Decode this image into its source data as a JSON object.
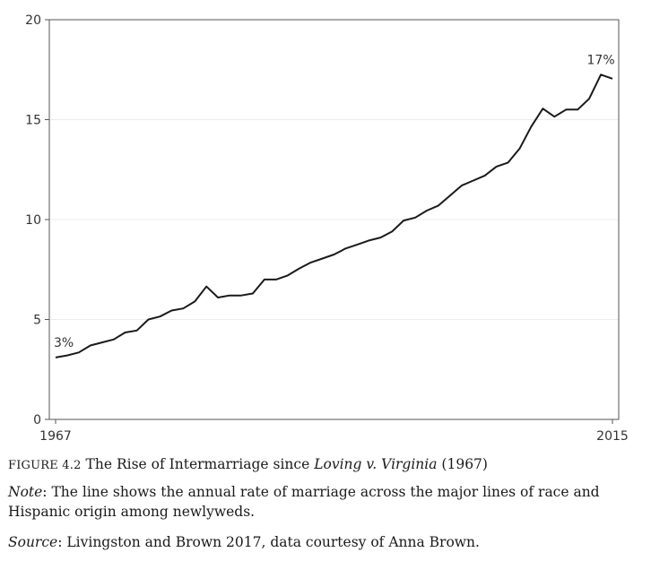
{
  "chart_data": {
    "type": "line",
    "title": "",
    "xlabel": "",
    "ylabel": "",
    "xlim": [
      1967,
      2015
    ],
    "ylim": [
      0,
      20
    ],
    "grid": true,
    "x_ticks": [
      "1967",
      "2015"
    ],
    "y_ticks": [
      "0",
      "5",
      "10",
      "15",
      "20"
    ],
    "series": [
      {
        "x": [
          1967,
          1968,
          1969,
          1970,
          1971,
          1972,
          1973,
          1974,
          1975,
          1976,
          1977,
          1978,
          1979,
          1980,
          1981,
          1982,
          1983,
          1984,
          1985,
          1986,
          1987,
          1988,
          1989,
          1990,
          1991,
          1992,
          1993,
          1994,
          1995,
          1996,
          1997,
          1998,
          1999,
          2000,
          2001,
          2002,
          2003,
          2004,
          2005,
          2006,
          2007,
          2008,
          2009,
          2010,
          2011,
          2012,
          2013,
          2014,
          2015
        ],
        "values": [
          3.1,
          3.2,
          3.35,
          3.7,
          3.85,
          4.0,
          4.35,
          4.45,
          5.0,
          5.15,
          5.45,
          5.55,
          5.9,
          6.65,
          6.1,
          6.2,
          6.2,
          6.3,
          7.0,
          7.0,
          7.2,
          7.55,
          7.85,
          8.05,
          8.25,
          8.55,
          8.75,
          8.95,
          9.1,
          9.4,
          9.95,
          10.1,
          10.45,
          10.7,
          11.2,
          11.7,
          11.95,
          12.2,
          12.65,
          12.85,
          13.55,
          14.65,
          15.55,
          15.15,
          15.5,
          15.5,
          16.05,
          17.25,
          17.05
        ]
      }
    ],
    "annotations": [
      {
        "label": "3%",
        "x": 1967,
        "y": 3.1
      },
      {
        "label": "17%",
        "x": 2014,
        "y": 17.25
      }
    ],
    "line_color": "#1a1a1a"
  },
  "caption": {
    "figure_number": "FIGURE 4.2",
    "title_start": "The Rise of Intermarriage since ",
    "title_italic": "Loving v. Virginia",
    "title_end": " (1967)",
    "note_label": "Note",
    "note_text": ": The line shows the annual rate of marriage across the major lines of race and Hispanic origin among newlyweds.",
    "source_label": "Source",
    "source_text": ": Livingston and Brown 2017, data courtesy of Anna Brown."
  }
}
